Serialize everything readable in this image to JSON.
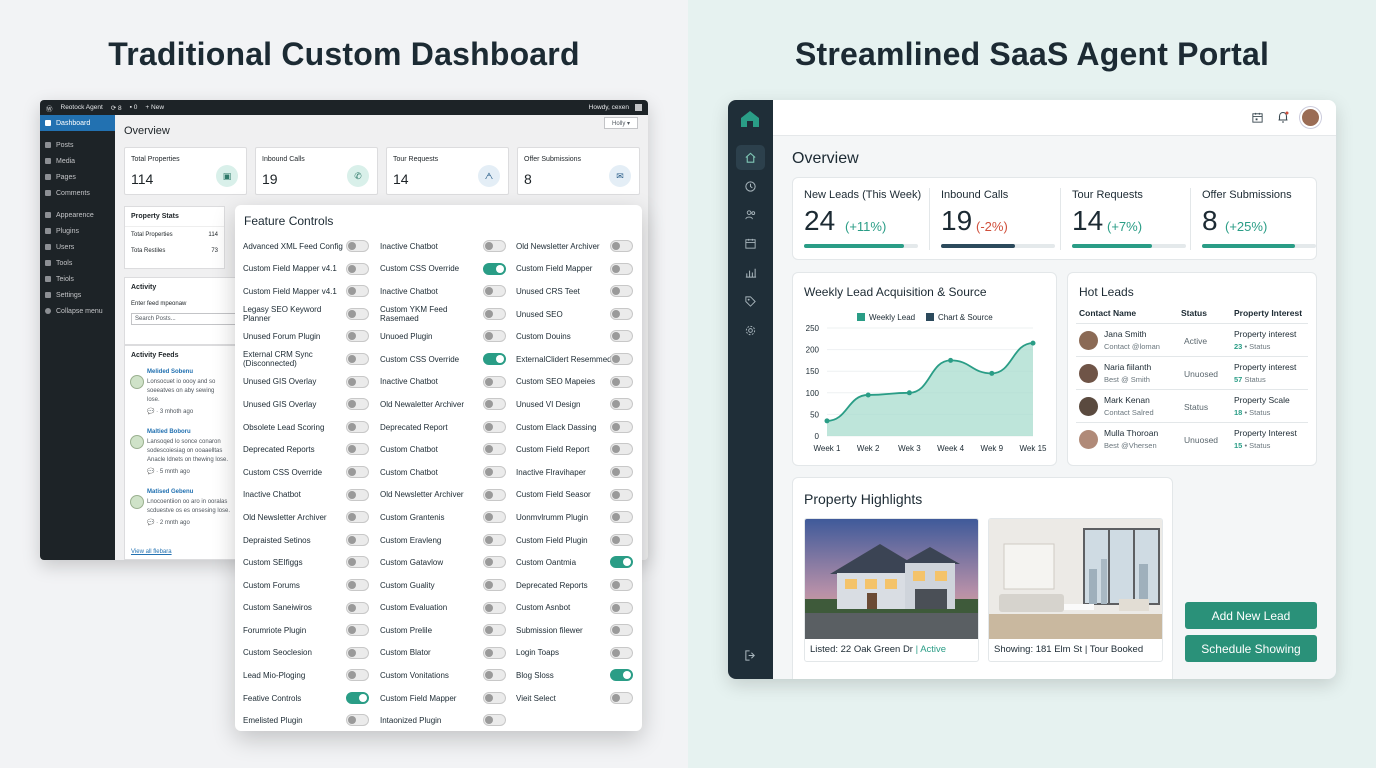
{
  "left": {
    "heading": "Traditional Custom Dashboard",
    "topbar": {
      "site": "Reotock Agent",
      "updates": "8",
      "comments": "0",
      "new": "New",
      "greeting": "Howdy, cexen"
    },
    "sidebar": [
      "Dashboard",
      "Posts",
      "Media",
      "Pages",
      "Comments",
      "Appearence",
      "Plugins",
      "Users",
      "Tools",
      "Teiols",
      "Settings",
      "Collapse menu"
    ],
    "page_title": "Overview",
    "help": "Holly ▾",
    "stats": [
      {
        "label": "Total Properties",
        "value": "114",
        "icon": "building-icon"
      },
      {
        "label": "Inbound Calls",
        "value": "19",
        "icon": "phone-icon"
      },
      {
        "label": "Tour Requests",
        "value": "14",
        "icon": "people-icon"
      },
      {
        "label": "Offer Submissions",
        "value": "8",
        "icon": "mail-icon"
      }
    ],
    "property_stats": {
      "title": "Property Stats",
      "rows": [
        [
          "Total Properties",
          "114"
        ],
        [
          "Tota Restiles",
          "73"
        ]
      ]
    },
    "activity": {
      "title": "Activity",
      "placeholder_label": "Enter feed mpeonaw",
      "search": "Search Posts..."
    },
    "feeds": {
      "title": "Activity Feeds",
      "items": [
        {
          "name": "Melided Sobenu",
          "text": "Lonsocuet io oooy and so\nsoeeatves on aby sewing\nlose.",
          "meta": "3 mhoth ago"
        },
        {
          "name": "Maltied Boboru",
          "text": "Lansoqed lo sonce conaron\nsodescoiesiag on ooaaelltas\nAnacle ldnets on thewing lose.",
          "meta": "5 mnth ago"
        },
        {
          "name": "Matised Gebenu",
          "text": "Lnocoentiion oo aro in ooralas\nscduestve os es onsesing lose.",
          "meta": "2 mnth ago"
        }
      ],
      "view_all": "View all flebara"
    },
    "feature_controls": {
      "title": "Feature Controls",
      "rows": [
        [
          [
            "Advanced XML Feed Config",
            false
          ],
          [
            "Inactive Chatbot",
            false
          ],
          [
            "Old Newsletter Archiver",
            false
          ]
        ],
        [
          [
            "Custom Field Mapper v4.1",
            false
          ],
          [
            "Custom CSS Override",
            true
          ],
          [
            "Custom Field Mapper",
            false
          ]
        ],
        [
          [
            "Custom Field Mapper v4.1",
            false
          ],
          [
            "Inactive Chatbot",
            false
          ],
          [
            "Unused CRS Teet",
            false
          ]
        ],
        [
          [
            "Legasy SEO Keyword Planner",
            false
          ],
          [
            "Custom YKM Feed Rasemaed",
            false
          ],
          [
            "Unused SEO",
            false
          ]
        ],
        [
          [
            "Unused Forum Plugin",
            false
          ],
          [
            "Unuoed Plugin",
            false
          ],
          [
            "Custom Douins",
            false
          ]
        ],
        [
          [
            "External CRM Sync (Disconnected)",
            false
          ],
          [
            "Custom CSS Override",
            true
          ],
          [
            "ExternalClidert Resemmed",
            false
          ]
        ],
        [
          [
            "Unused GIS Overlay",
            false
          ],
          [
            "Inactive Chatbot",
            false
          ],
          [
            "Custom SEO Mapeies",
            false
          ]
        ],
        [
          [
            "Unused GIS Overlay",
            false
          ],
          [
            "Old Newaletter Archiver",
            false
          ],
          [
            "Unused VI Design",
            false
          ]
        ],
        [
          [
            "Obsolete Lead Scoring",
            false
          ],
          [
            "Deprecated Report",
            false
          ],
          [
            "Custom Elack Dassing",
            false
          ]
        ],
        [
          [
            "Deprecated Reports",
            false
          ],
          [
            "Custom Chatbot",
            false
          ],
          [
            "Custom Field Report",
            false
          ]
        ],
        [
          [
            "Custom CSS Override",
            false
          ],
          [
            "Custom Chatbot",
            false
          ],
          [
            "Inactive Flravihaper",
            false
          ]
        ],
        [
          [
            "Inactive Chatbot",
            false
          ],
          [
            "Old Newsletter Archiver",
            false
          ],
          [
            "Custom Field Seasor",
            false
          ]
        ],
        [
          [
            "Old Newsletter Archiver",
            false
          ],
          [
            "Custom Grantenis",
            false
          ],
          [
            "Uonmvlrumm Plugin",
            false
          ]
        ],
        [
          [
            "Depraisted Setinos",
            false
          ],
          [
            "Custom Eravleng",
            false
          ],
          [
            "Custom Field Plugin",
            false
          ]
        ],
        [
          [
            "Custom SEIfiggs",
            false
          ],
          [
            "Custom Gatavlow",
            false
          ],
          [
            "Custom Oantmia",
            true
          ]
        ],
        [
          [
            "Custom Forums",
            false
          ],
          [
            "Custom Guality",
            false
          ],
          [
            "Deprecated Reports",
            false
          ]
        ],
        [
          [
            "Custom Saneiwiros",
            false
          ],
          [
            "Custom Evaluation",
            false
          ],
          [
            "Custom Asnbot",
            false
          ]
        ],
        [
          [
            "Forumriote Plugin",
            false
          ],
          [
            "Custom Prelile",
            false
          ],
          [
            "Submission filewer",
            false
          ]
        ],
        [
          [
            "Custom Seoclesion",
            false
          ],
          [
            "Custom Blator",
            false
          ],
          [
            "Login Toaps",
            false
          ]
        ],
        [
          [
            "Lead Mio-Ploging",
            false
          ],
          [
            "Custom Vonitations",
            false
          ],
          [
            "Blog Sloss",
            true
          ]
        ],
        [
          [
            "Feative Controls",
            true
          ],
          [
            "Custom Field Mapper",
            false
          ],
          [
            "Vieit Select",
            false
          ]
        ],
        [
          [
            "Emelisted Plugin",
            false
          ],
          [
            "Intaonized Plugin",
            false
          ],
          null
        ]
      ]
    }
  },
  "right": {
    "heading": "Streamlined SaaS Agent Portal",
    "title": "Overview",
    "kpis": [
      {
        "label": "New Leads (This Week)",
        "value": "24",
        "delta": "(+11%)",
        "color": "#2a9d86",
        "fill": 0.88
      },
      {
        "label": "Inbound Calls",
        "value": "19",
        "delta": "(-2%)",
        "color": "#d0503c",
        "fill": 0.65,
        "bar": "#2c4a5c"
      },
      {
        "label": "Tour Requests",
        "value": "14",
        "delta": "(+7%)",
        "color": "#2a9d86",
        "fill": 0.7
      },
      {
        "label": "Offer Submissions",
        "value": "8",
        "delta": "(+25%)",
        "color": "#2a9d86",
        "fill": 0.82
      }
    ],
    "chart_card_title": "Weekly Lead Acquisition & Source",
    "chart_data": {
      "type": "area",
      "legend": [
        "Weekly Lead",
        "Chart & Source"
      ],
      "categories": [
        "Week 1",
        "Wek 2",
        "Wek 3",
        "Week 4",
        "Wek 9",
        "Wek 15"
      ],
      "values": [
        35,
        95,
        100,
        175,
        145,
        215
      ],
      "yticks": [
        0,
        50,
        100,
        150,
        200,
        250
      ],
      "ylim": [
        0,
        250
      ],
      "colors": {
        "area": "#a8dccd",
        "line": "#2a9d86",
        "legend2": "#2c4a5c"
      }
    },
    "hot_leads": {
      "title": "Hot Leads",
      "headers": [
        "Contact Name",
        "Status",
        "Property Interest"
      ],
      "rows": [
        {
          "name": "Jana Smith",
          "contact": "Contact @loman",
          "status": "Active",
          "prop": "Property interest",
          "num": "23",
          "sub": "• Status"
        },
        {
          "name": "Naria fiilanth",
          "contact": "Best @ Smith",
          "status": "Unuosed",
          "prop": "Property interest",
          "num": "57",
          "sub": "Status"
        },
        {
          "name": "Mark Kenan",
          "contact": "Contact Salred",
          "status": "Status",
          "prop": "Property Scale",
          "num": "18",
          "sub": "• Status"
        },
        {
          "name": "Mulla Thoroan",
          "contact": "Best @Vhersen",
          "status": "Unuosed",
          "prop": "Property Interest",
          "num": "15",
          "sub": "• Status"
        }
      ]
    },
    "highlights": {
      "title": "Property Highlights",
      "items": [
        {
          "caption": "Listed: 22 Oak Green Dr",
          "sep": "|",
          "status": "Active"
        },
        {
          "caption": "Showing: 181 Elm St | Tour Booked",
          "sep": "",
          "status": ""
        }
      ]
    },
    "buttons": {
      "add": "Add New Lead",
      "schedule": "Schedule Showing"
    }
  }
}
